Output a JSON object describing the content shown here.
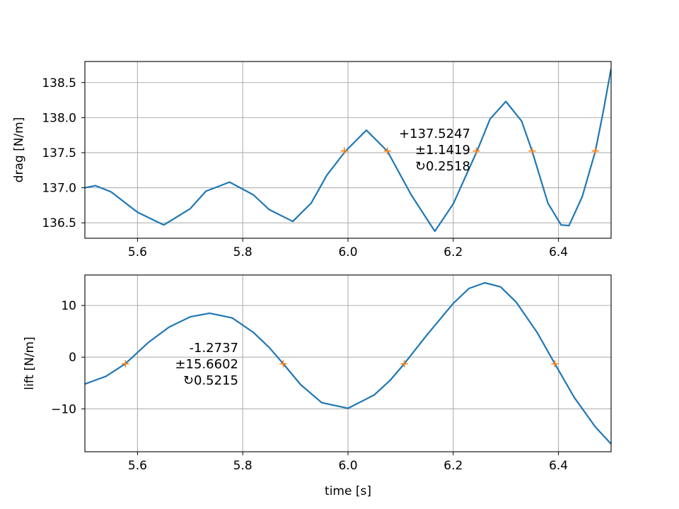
{
  "chart_data": [
    {
      "type": "line",
      "ylabel": "drag [N/m]",
      "xlabel": "",
      "xlim": [
        5.5,
        6.5
      ],
      "ylim": [
        136.28,
        138.8
      ],
      "grid": true,
      "xticks": [
        5.6,
        5.8,
        6.0,
        6.2,
        6.4
      ],
      "xtick_labels": [
        "5.6",
        "5.8",
        "6.0",
        "6.2",
        "6.4"
      ],
      "yticks": [
        136.5,
        137.0,
        137.5,
        138.0,
        138.5
      ],
      "ytick_labels": [
        "136.5",
        "137.0",
        "137.5",
        "138.0",
        "138.5"
      ],
      "series": [
        {
          "color": "#1f77b4",
          "x": [
            5.5,
            5.52,
            5.55,
            5.6,
            5.65,
            5.7,
            5.73,
            5.775,
            5.82,
            5.85,
            5.895,
            5.93,
            5.96,
            5.995,
            6.035,
            6.075,
            6.12,
            6.165,
            6.2,
            6.245,
            6.27,
            6.3,
            6.33,
            6.35,
            6.38,
            6.405,
            6.42,
            6.445,
            6.47,
            6.485,
            6.5
          ],
          "y": [
            137.0,
            137.03,
            136.94,
            136.65,
            136.47,
            136.7,
            136.95,
            137.08,
            136.9,
            136.69,
            136.52,
            136.78,
            137.18,
            137.52,
            137.82,
            137.52,
            136.9,
            136.38,
            136.77,
            137.52,
            137.98,
            138.23,
            137.95,
            137.52,
            136.78,
            136.47,
            136.46,
            136.87,
            137.52,
            138.08,
            138.7
          ]
        }
      ],
      "markers": {
        "color": "#ff7f0e",
        "symbol": "+",
        "x": [
          5.993,
          6.075,
          6.244,
          6.35,
          6.47
        ],
        "y": [
          137.5247,
          137.5247,
          137.5247,
          137.5247,
          137.5247
        ]
      },
      "annotation": [
        "+137.5247",
        "±1.1419",
        "↻0.2518"
      ]
    },
    {
      "type": "line",
      "ylabel": "lift [N/m]",
      "xlabel": "time [s]",
      "xlim": [
        5.5,
        6.5
      ],
      "ylim": [
        -18.3,
        15.9
      ],
      "grid": true,
      "xticks": [
        5.6,
        5.8,
        6.0,
        6.2,
        6.4
      ],
      "xtick_labels": [
        "5.6",
        "5.8",
        "6.0",
        "6.2",
        "6.4"
      ],
      "yticks": [
        -10,
        0,
        10
      ],
      "ytick_labels": [
        "−10",
        "0",
        "10"
      ],
      "series": [
        {
          "color": "#1f77b4",
          "x": [
            5.5,
            5.54,
            5.577,
            5.62,
            5.66,
            5.7,
            5.737,
            5.78,
            5.82,
            5.85,
            5.877,
            5.91,
            5.95,
            6.0,
            6.05,
            6.08,
            6.107,
            6.15,
            6.2,
            6.23,
            6.26,
            6.29,
            6.32,
            6.36,
            6.393,
            6.43,
            6.47,
            6.5
          ],
          "y": [
            -5.2,
            -3.7,
            -1.27,
            2.8,
            5.8,
            7.8,
            8.5,
            7.6,
            4.8,
            1.9,
            -1.27,
            -5.3,
            -8.8,
            -9.9,
            -7.3,
            -4.5,
            -1.27,
            4.3,
            10.4,
            13.3,
            14.4,
            13.6,
            10.6,
            4.7,
            -1.27,
            -7.8,
            -13.5,
            -16.8
          ]
        }
      ],
      "markers": {
        "color": "#ff7f0e",
        "symbol": "+",
        "x": [
          5.577,
          5.877,
          6.107,
          6.393
        ],
        "y": [
          -1.2737,
          -1.2737,
          -1.2737,
          -1.2737
        ]
      },
      "annotation": [
        "-1.2737",
        "±15.6602",
        "↻0.5215"
      ]
    }
  ]
}
